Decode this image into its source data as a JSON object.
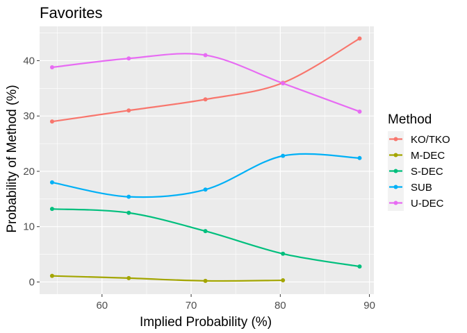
{
  "chart_data": {
    "type": "line",
    "title": "Favorites",
    "xlabel": "Implied Probability (%)",
    "ylabel": "Probability of Method (%)",
    "xlim": [
      53.0,
      90.5
    ],
    "ylim": [
      -2.2,
      46.2
    ],
    "xticks": [
      60,
      70,
      80,
      90
    ],
    "yticks": [
      0,
      10,
      20,
      30,
      40
    ],
    "grid": true,
    "smooth": true,
    "legend": {
      "title": "Method",
      "position": "right"
    },
    "series": [
      {
        "name": "KO/TKO",
        "color": "#F8766D",
        "x": [
          54.4,
          63.0,
          71.6,
          80.3,
          88.9
        ],
        "y": [
          29.0,
          31.0,
          33.0,
          36.0,
          44.0
        ]
      },
      {
        "name": "M-DEC",
        "color": "#A3A500",
        "x": [
          54.4,
          63.0,
          71.6,
          80.3
        ],
        "y": [
          1.1,
          0.7,
          0.2,
          0.3
        ]
      },
      {
        "name": "S-DEC",
        "color": "#00BF7D",
        "x": [
          54.4,
          63.0,
          71.6,
          80.3,
          88.9
        ],
        "y": [
          13.2,
          12.5,
          9.2,
          5.1,
          2.8
        ]
      },
      {
        "name": "SUB",
        "color": "#00B0F6",
        "x": [
          54.4,
          63.0,
          71.6,
          80.3,
          88.9
        ],
        "y": [
          18.0,
          15.4,
          16.7,
          22.8,
          22.4
        ]
      },
      {
        "name": "U-DEC",
        "color": "#E76BF3",
        "x": [
          54.4,
          63.0,
          71.6,
          80.3,
          88.9
        ],
        "y": [
          38.8,
          40.4,
          41.0,
          35.9,
          30.8
        ]
      }
    ]
  }
}
